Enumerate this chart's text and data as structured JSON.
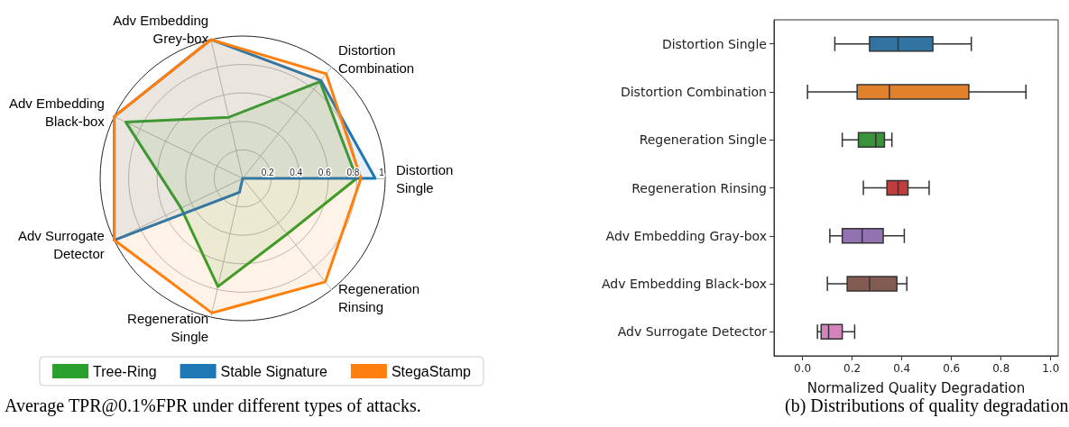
{
  "chart_data": [
    {
      "type": "radar",
      "categories": [
        "Distortion Combination",
        "Distortion Single",
        "Regeneration Rinsing",
        "Regeneration Single",
        "Adv Surrogate Detector",
        "Adv Embedding Black-box",
        "Adv Embedding Grey-box"
      ],
      "series": [
        {
          "name": "Tree-Ring",
          "color": "#2ca02c",
          "values": [
            0.87,
            0.8,
            0.5,
            0.78,
            0.48,
            0.91,
            0.44
          ]
        },
        {
          "name": "Stable Signature",
          "color": "#1f77b4",
          "values": [
            0.88,
            0.93,
            0.0,
            0.1,
            1.0,
            1.0,
            1.0
          ]
        },
        {
          "name": "StegaStamp",
          "color": "#ff7f0e",
          "values": [
            0.94,
            0.83,
            0.93,
            0.97,
            1.0,
            1.0,
            1.0
          ]
        }
      ],
      "ylim": [
        0,
        1
      ],
      "yticks": [
        0.2,
        0.4,
        0.6,
        0.8,
        1
      ],
      "grid": true,
      "legend": "bottom",
      "annotations": [
        "Average TPR@0.1%FPR under different types of attacks."
      ]
    },
    {
      "type": "box",
      "orientation": "horizontal",
      "categories": [
        "Distortion Single",
        "Distortion Combination",
        "Regeneration Single",
        "Regeneration Rinsing",
        "Adv Embedding Gray-box",
        "Adv Embedding Black-box",
        "Adv Surrogate Detector"
      ],
      "boxes": [
        {
          "low": 0.13,
          "q1": 0.27,
          "median": 0.385,
          "q3": 0.525,
          "high": 0.68
        },
        {
          "low": 0.02,
          "q1": 0.22,
          "median": 0.35,
          "q3": 0.67,
          "high": 0.9
        },
        {
          "low": 0.16,
          "q1": 0.225,
          "median": 0.295,
          "q3": 0.33,
          "high": 0.36
        },
        {
          "low": 0.245,
          "q1": 0.34,
          "median": 0.385,
          "q3": 0.425,
          "high": 0.51
        },
        {
          "low": 0.11,
          "q1": 0.16,
          "median": 0.24,
          "q3": 0.325,
          "high": 0.41
        },
        {
          "low": 0.1,
          "q1": 0.18,
          "median": 0.27,
          "q3": 0.38,
          "high": 0.42
        },
        {
          "low": 0.06,
          "q1": 0.075,
          "median": 0.105,
          "q3": 0.16,
          "high": 0.21
        }
      ],
      "colors": [
        "#3274a1",
        "#e1812c",
        "#3a923a",
        "#c03d3e",
        "#9372b2",
        "#845b53",
        "#d684bd"
      ],
      "xlim": [
        -0.115,
        1.03
      ],
      "xticks": [
        {
          "value": 0,
          "label": "0.0"
        },
        {
          "value": 0.2,
          "label": "0.2"
        },
        {
          "value": 0.4,
          "label": "0.4"
        },
        {
          "value": 0.6,
          "label": "0.6"
        },
        {
          "value": 0.8,
          "label": "0.8"
        },
        {
          "value": 1,
          "label": "1.0"
        }
      ],
      "xlabel": "Normalized Quality Degradation",
      "annotations": [
        "(b) Distributions of quality degradation"
      ]
    }
  ]
}
